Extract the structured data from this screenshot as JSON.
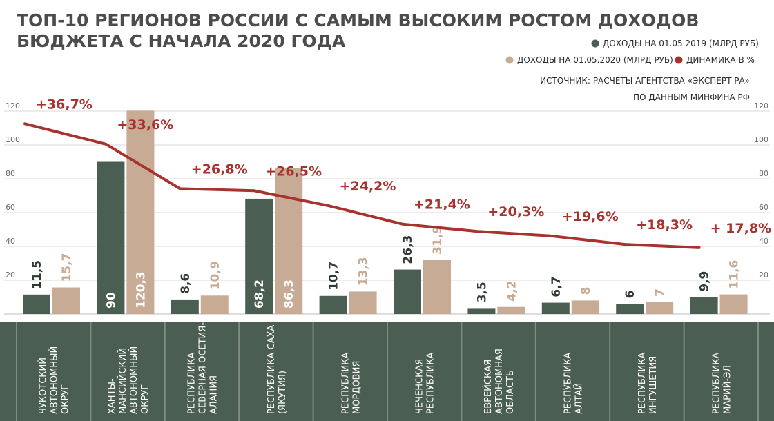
{
  "chart_data": {
    "type": "bar",
    "title": "ТОП-10 РЕГИОНОВ РОССИИ С САМЫМ ВЫСОКИМ РОСТОМ ДОХОДОВ",
    "subtitle": "БЮДЖЕТА С НАЧАЛА 2020 ГОДА",
    "source_line1": "ИСТОЧНИК: РАСЧЕТЫ АГЕНТСТВА «ЭКСПЕРТ РА»",
    "source_line2": "ПО ДАННЫМ МИНФИНА РФ",
    "ylim": [
      0,
      120
    ],
    "yticks": [
      20,
      40,
      60,
      80,
      100,
      120
    ],
    "grid": true,
    "legend_position": "top-right",
    "categories": [
      [
        "ЧУКОТСКИЙ",
        "АВТОНОМНЫЙ",
        "ОКРУГ"
      ],
      [
        "ХАНТЫ-",
        "МАНСИЙСКИЙ",
        "АВТОНОМНЫЙ",
        "ОКРУГ"
      ],
      [
        "РЕСПУБЛИКА",
        "СЕВЕРНАЯ ОСЕТИЯ-",
        "АЛАНИЯ"
      ],
      [
        "РЕСПУБЛИКА САХА",
        "(ЯКУТИЯ)"
      ],
      [
        "РЕСПУБЛИКА",
        "МОРДОВИЯ"
      ],
      [
        "ЧЕЧЕНСКАЯ",
        "РЕСПУБЛИКА"
      ],
      [
        "ЕВРЕЙСКАЯ",
        "АВТОНОМНАЯ",
        "ОБЛАСТЬ"
      ],
      [
        "РЕСПУБЛИКА",
        "АЛТАЙ"
      ],
      [
        "РЕСПУБЛИКА",
        "ИНГУШЕТИЯ"
      ],
      [
        "РЕСПУБЛИКА",
        "МАРИЙ-ЭЛ"
      ]
    ],
    "series": [
      {
        "name": "ДОХОДЫ НА 01.05.2019 (МЛРД РУБ)",
        "color": "#4b5e52",
        "label_color": "#2f3a33",
        "values": [
          11.5,
          90,
          8.6,
          68.2,
          10.7,
          26.3,
          3.5,
          6.7,
          6,
          9.9
        ],
        "labels": [
          "11,5",
          "90",
          "8,6",
          "68,2",
          "10,7",
          "26,3",
          "3,5",
          "6,7",
          "6",
          "9,9"
        ]
      },
      {
        "name": "ДОХОДЫ НА 01.05.2020 (МЛРД РУБ)",
        "color": "#c7ab95",
        "label_color": "#c7ab95",
        "values": [
          15.7,
          120.3,
          10.9,
          86.3,
          13.3,
          31.9,
          4.2,
          8,
          7,
          11.6
        ],
        "labels": [
          "15,7",
          "120,3",
          "10,9",
          "86,3",
          "13,3",
          "31,9",
          "4,2",
          "8",
          "7",
          "11,6"
        ]
      }
    ],
    "growth": {
      "name": "ДИНАМИКА В %",
      "color": "#a8322d",
      "values": [
        36.7,
        33.6,
        26.8,
        26.5,
        24.2,
        21.4,
        20.3,
        19.6,
        18.3,
        17.8
      ],
      "labels": [
        "+36,7%",
        "+33,6%",
        "+26,8%",
        "+26,5%",
        "+24,2%",
        "+21,4%",
        "+20,3%",
        "+19,6%",
        "+18,3%",
        "+ 17,8%"
      ]
    }
  }
}
